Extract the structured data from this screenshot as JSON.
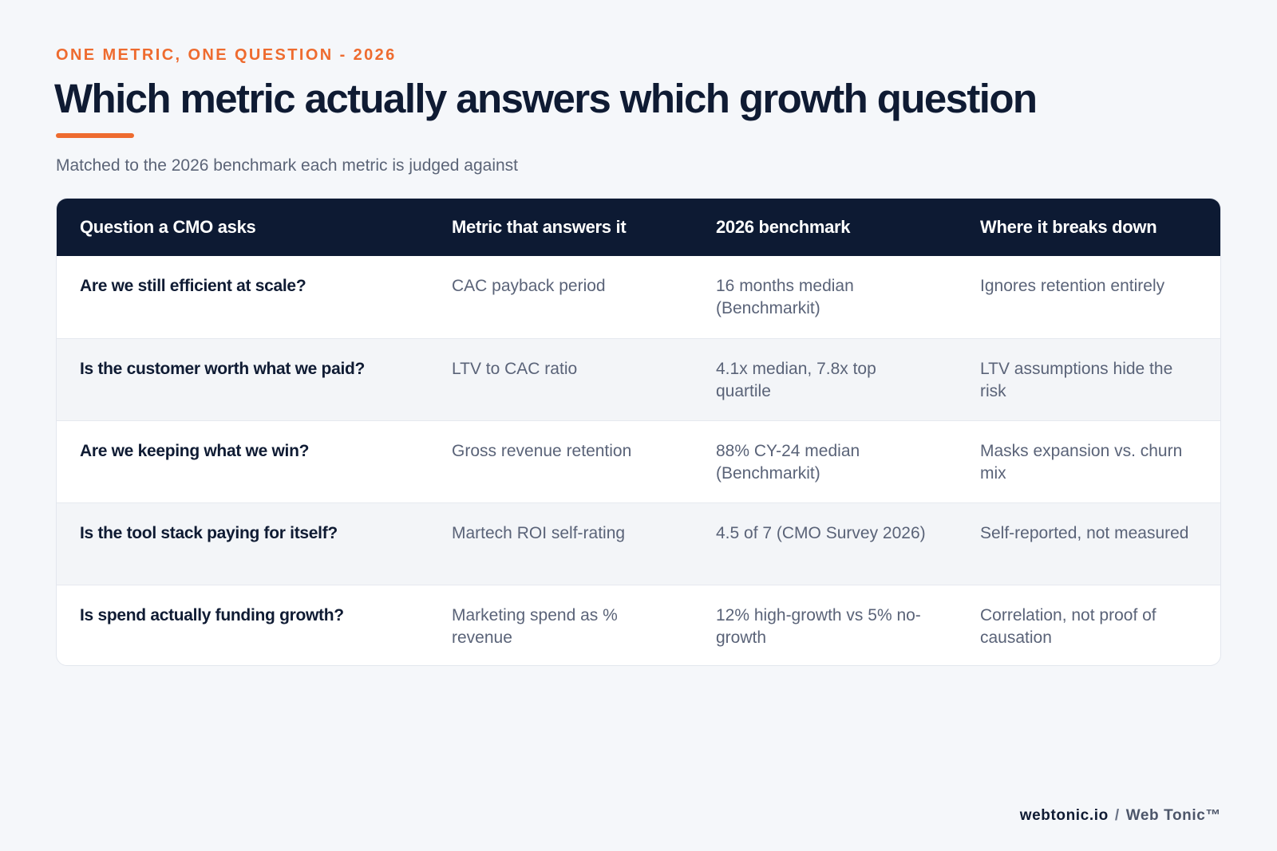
{
  "header": {
    "eyebrow": "ONE METRIC, ONE QUESTION - 2026",
    "title": "Which metric actually answers which growth question",
    "subtitle": "Matched to the 2026 benchmark each metric is judged against"
  },
  "table": {
    "columns": [
      "Question a CMO asks",
      "Metric that answers it",
      "2026 benchmark",
      "Where it breaks down"
    ],
    "rows": [
      [
        "Are we still efficient at scale?",
        "CAC payback period",
        "16 months median (Benchmarkit)",
        "Ignores retention entirely"
      ],
      [
        "Is the customer worth what we paid?",
        "LTV to CAC ratio",
        "4.1x median, 7.8x top quartile",
        "LTV assumptions hide the risk"
      ],
      [
        "Are we keeping what we win?",
        "Gross revenue retention",
        "88% CY-24 median (Benchmarkit)",
        "Masks expansion vs. churn mix"
      ],
      [
        "Is the tool stack paying for itself?",
        "Martech ROI self-rating",
        "4.5 of 7 (CMO Survey 2026)",
        "Self-reported, not measured"
      ],
      [
        "Is spend actually funding growth?",
        "Marketing spend as % revenue",
        "12% high-growth vs 5% no-growth",
        "Correlation, not proof of causation"
      ]
    ]
  },
  "footer": {
    "site": "webtonic.io",
    "separator": "/",
    "brand": "Web Tonic™"
  },
  "colors": {
    "accent": "#ee6b2f",
    "header_bg": "#0d1a33",
    "page_bg": "#f5f7fa"
  }
}
